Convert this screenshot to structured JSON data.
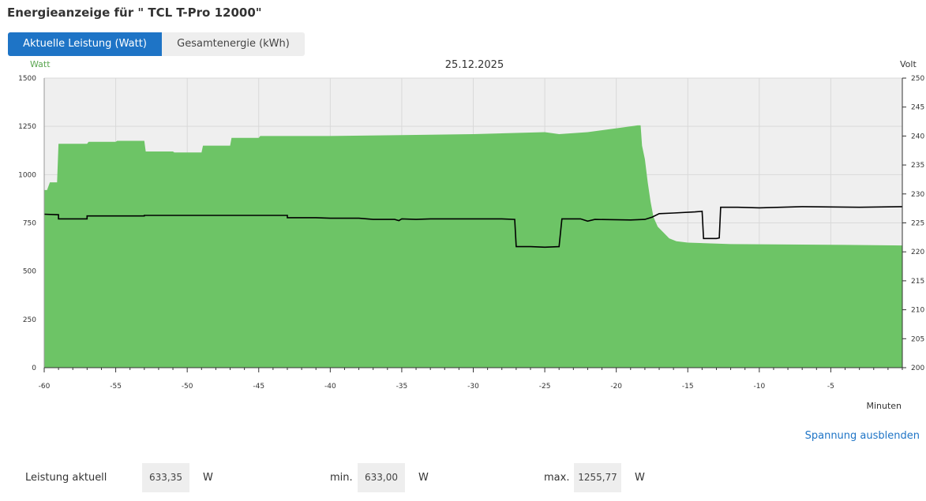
{
  "page": {
    "title": "Energieanzeige für \" TCL T-Pro 12000\""
  },
  "tabs": [
    {
      "label": "Aktuelle Leistung (Watt)",
      "active": true
    },
    {
      "label": "Gesamtenergie (kWh)",
      "active": false
    }
  ],
  "chart_data": {
    "type": "area",
    "title": "25.12.2025",
    "xlabel": "Minuten",
    "ylabel_left": "Watt",
    "ylabel_right": "Volt",
    "xlim": [
      -60,
      0
    ],
    "ylim_left": [
      0,
      1500
    ],
    "ylim_right": [
      200,
      250
    ],
    "x_ticks": [
      -60,
      -55,
      -50,
      -45,
      -40,
      -35,
      -30,
      -25,
      -20,
      -15,
      -10,
      -5
    ],
    "y_ticks_left": [
      0,
      250,
      500,
      750,
      1000,
      1250,
      1500
    ],
    "y_ticks_right": [
      200,
      205,
      210,
      215,
      220,
      225,
      230,
      235,
      240,
      245,
      250
    ],
    "grid": true,
    "series": [
      {
        "kind": "area",
        "axis": "left",
        "color": "#6dc466",
        "points": [
          [
            -60,
            920
          ],
          [
            -59.8,
            920
          ],
          [
            -59.6,
            960
          ],
          [
            -59.1,
            960
          ],
          [
            -59.0,
            1160
          ],
          [
            -57.0,
            1160
          ],
          [
            -56.9,
            1170
          ],
          [
            -55.0,
            1170
          ],
          [
            -54.9,
            1175
          ],
          [
            -53.0,
            1175
          ],
          [
            -52.9,
            1120
          ],
          [
            -51.0,
            1120
          ],
          [
            -50.9,
            1115
          ],
          [
            -49.0,
            1115
          ],
          [
            -48.9,
            1150
          ],
          [
            -47.0,
            1150
          ],
          [
            -46.9,
            1190
          ],
          [
            -45.0,
            1190
          ],
          [
            -44.9,
            1200
          ],
          [
            -40.0,
            1200
          ],
          [
            -35.0,
            1205
          ],
          [
            -30.0,
            1210
          ],
          [
            -25.0,
            1220
          ],
          [
            -24.0,
            1210
          ],
          [
            -22.0,
            1220
          ],
          [
            -20.0,
            1240
          ],
          [
            -18.5,
            1255
          ],
          [
            -18.3,
            1255
          ],
          [
            -18.2,
            1150
          ],
          [
            -18.0,
            1080
          ],
          [
            -17.8,
            960
          ],
          [
            -17.6,
            860
          ],
          [
            -17.4,
            780
          ],
          [
            -17.1,
            730
          ],
          [
            -16.7,
            700
          ],
          [
            -16.3,
            670
          ],
          [
            -15.8,
            655
          ],
          [
            -15.0,
            648
          ],
          [
            -12.0,
            640
          ],
          [
            -8.0,
            638
          ],
          [
            -4.0,
            636
          ],
          [
            0,
            633
          ]
        ]
      },
      {
        "kind": "line",
        "axis": "right",
        "color": "#000000",
        "points": [
          [
            -60,
            226.5
          ],
          [
            -59.0,
            226.4
          ],
          [
            -59.0,
            225.7
          ],
          [
            -57.0,
            225.7
          ],
          [
            -57.0,
            226.2
          ],
          [
            -53.0,
            226.2
          ],
          [
            -53.0,
            226.3
          ],
          [
            -43.0,
            226.3
          ],
          [
            -43.0,
            225.9
          ],
          [
            -41.0,
            225.9
          ],
          [
            -40.0,
            225.8
          ],
          [
            -38.0,
            225.8
          ],
          [
            -37.0,
            225.6
          ],
          [
            -35.5,
            225.6
          ],
          [
            -35.2,
            225.4
          ],
          [
            -35.0,
            225.7
          ],
          [
            -34.0,
            225.6
          ],
          [
            -33.0,
            225.7
          ],
          [
            -28.0,
            225.7
          ],
          [
            -27.1,
            225.6
          ],
          [
            -27.0,
            220.9
          ],
          [
            -26.0,
            220.9
          ],
          [
            -25.0,
            220.8
          ],
          [
            -24.0,
            220.9
          ],
          [
            -23.8,
            225.7
          ],
          [
            -22.5,
            225.7
          ],
          [
            -22.0,
            225.3
          ],
          [
            -21.5,
            225.6
          ],
          [
            -19.0,
            225.5
          ],
          [
            -18.0,
            225.6
          ],
          [
            -17.5,
            226.0
          ],
          [
            -17.0,
            226.6
          ],
          [
            -16.0,
            226.7
          ],
          [
            -14.5,
            226.9
          ],
          [
            -14.0,
            227.0
          ],
          [
            -13.9,
            222.3
          ],
          [
            -13.0,
            222.3
          ],
          [
            -12.8,
            222.4
          ],
          [
            -12.7,
            227.7
          ],
          [
            -11.5,
            227.7
          ],
          [
            -10.0,
            227.6
          ],
          [
            -7.0,
            227.8
          ],
          [
            -3.0,
            227.7
          ],
          [
            0,
            227.8
          ]
        ]
      }
    ]
  },
  "toggle_link": "Spannung ausblenden",
  "stats": {
    "current_label": "Leistung aktuell",
    "current_value": "633,35",
    "current_unit": "W",
    "min_label": "min.",
    "min_value": "633,00",
    "min_unit": "W",
    "max_label": "max.",
    "max_value": "1255,77",
    "max_unit": "W"
  }
}
